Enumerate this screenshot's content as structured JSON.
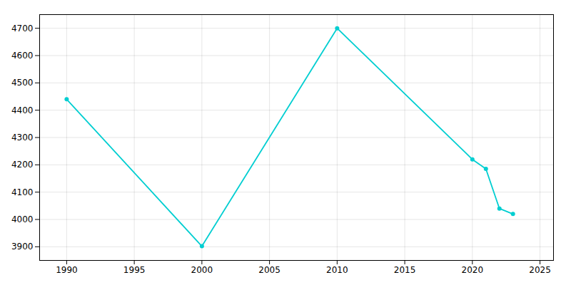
{
  "chart_data": {
    "type": "line",
    "x": [
      1990,
      2000,
      2010,
      2020,
      2021,
      2022,
      2023
    ],
    "values": [
      4440,
      3902,
      4700,
      4220,
      4185,
      4040,
      4020
    ],
    "color": "#00CED1",
    "marker": "circle",
    "xlim": [
      1988,
      2026
    ],
    "ylim": [
      3850,
      4750
    ],
    "xticks": [
      1990,
      1995,
      2000,
      2005,
      2010,
      2015,
      2020,
      2025
    ],
    "yticks": [
      3900,
      4000,
      4100,
      4200,
      4300,
      4400,
      4500,
      4600,
      4700
    ],
    "grid": true
  }
}
